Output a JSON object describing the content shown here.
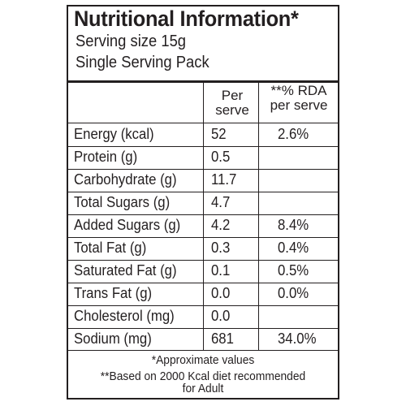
{
  "title": "Nutritional Information*",
  "serving_size": "Serving size 15g",
  "pack_type": "Single Serving Pack",
  "columns": {
    "per_serve": [
      "Per",
      "serve"
    ],
    "rda": [
      "**% RDA",
      "per serve"
    ]
  },
  "rows": [
    {
      "label": "Energy (kcal)",
      "per_serve": "52",
      "rda": "2.6%"
    },
    {
      "label": "Protein (g)",
      "per_serve": "0.5",
      "rda": ""
    },
    {
      "label": "Carbohydrate (g)",
      "per_serve": "11.7",
      "rda": ""
    },
    {
      "label": "Total Sugars (g)",
      "per_serve": "4.7",
      "rda": ""
    },
    {
      "label": "Added Sugars (g)",
      "per_serve": "4.2",
      "rda": "8.4%"
    },
    {
      "label": "Total Fat (g)",
      "per_serve": "0.3",
      "rda": "0.4%"
    },
    {
      "label": "Saturated Fat (g)",
      "per_serve": "0.1",
      "rda": "0.5%"
    },
    {
      "label": "Trans Fat (g)",
      "per_serve": "0.0",
      "rda": "0.0%"
    },
    {
      "label": "Cholesterol (mg)",
      "per_serve": "0.0",
      "rda": ""
    },
    {
      "label": "Sodium (mg)",
      "per_serve": "681",
      "rda": "34.0%"
    }
  ],
  "footnotes": [
    "*Approximate values",
    "**Based on 2000 Kcal diet recommended",
    "for Adult"
  ]
}
